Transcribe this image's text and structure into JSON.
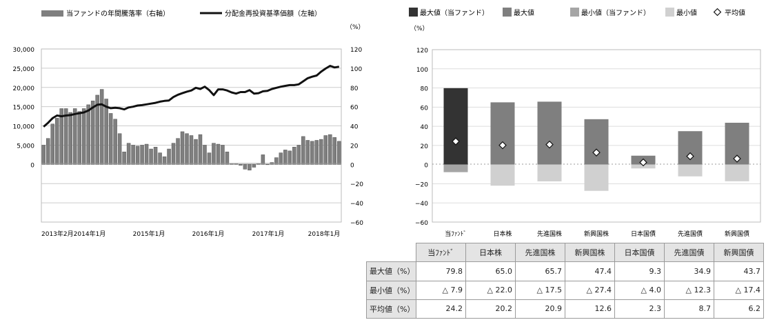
{
  "left_chart": {
    "legend": {
      "bar_label": "当ファンドの年間騰落率（右軸）",
      "line_label": "分配金再投資基準価額（左軸）"
    },
    "right_unit": "（%）",
    "left_ticks": [
      "30,000",
      "25,000",
      "20,000",
      "15,000",
      "10,000",
      "5,000",
      "0"
    ],
    "right_ticks": [
      "120",
      "100",
      "80",
      "60",
      "40",
      "20",
      "0",
      "−20",
      "−40",
      "−60"
    ],
    "x_ticks": [
      "2013年2月",
      "2014年1月",
      "2015年1月",
      "2016年1月",
      "2017年1月",
      "2018年1月"
    ],
    "colors": {
      "bar": "#7f7f7f",
      "line": "#111111",
      "grid": "#cccccc"
    }
  },
  "right_chart": {
    "legend": {
      "max_fund": "最大値（当ファンド）",
      "max": "最大値",
      "min_fund": "最小値（当ファンド）",
      "min": "最小値",
      "avg": "平均値"
    },
    "unit": "（%）",
    "y_ticks": [
      "120",
      "100",
      "80",
      "60",
      "40",
      "20",
      "0",
      "−20",
      "−40",
      "−60"
    ],
    "colors": {
      "max_fund": "#333333",
      "max": "#7f7f7f",
      "min_fund": "#a5a5a5",
      "min": "#d0d0d0"
    }
  },
  "chart_data": [
    {
      "type": "bar",
      "subtype": "bar-line-combo",
      "x_range": [
        "2013年2月",
        "2018年1月"
      ],
      "x_tick_labels": [
        "2013年2月",
        "2014年1月",
        "2015年1月",
        "2016年1月",
        "2017年1月",
        "2018年1月"
      ],
      "ylim_left": [
        0,
        30000
      ],
      "ylim_right": [
        -60,
        120
      ],
      "series": [
        {
          "name": "当ファンドの年間騰落率（右軸）",
          "axis": "right",
          "values": [
            20,
            27,
            42,
            48,
            58,
            58,
            54,
            58,
            55,
            58,
            62,
            66,
            72,
            78,
            68,
            53,
            47,
            32,
            13,
            22,
            20,
            19,
            20,
            21,
            16,
            18,
            12,
            8,
            16,
            22,
            27,
            34,
            32,
            30,
            26,
            31,
            20,
            12,
            22,
            21,
            20,
            13,
            1,
            1,
            -1,
            -5,
            -6,
            -3,
            1,
            10,
            0,
            2,
            7,
            12,
            15,
            14,
            18,
            20,
            29,
            25,
            24,
            25,
            26,
            30,
            31,
            28,
            24
          ]
        },
        {
          "name": "分配金再投資基準価額（左軸）",
          "axis": "left",
          "values": [
            9800,
            10800,
            12000,
            12700,
            12500,
            12700,
            12800,
            13100,
            13300,
            13500,
            14000,
            14800,
            15500,
            15600,
            15000,
            14600,
            14700,
            14600,
            14300,
            14800,
            15000,
            15300,
            15400,
            15600,
            15800,
            16000,
            16300,
            16500,
            16600,
            17500,
            18100,
            18500,
            18900,
            19200,
            19900,
            19600,
            20200,
            19300,
            18000,
            19500,
            19500,
            19200,
            18700,
            18400,
            18800,
            18800,
            19300,
            18400,
            18500,
            19000,
            19100,
            19600,
            19900,
            20200,
            20400,
            20600,
            20600,
            20800,
            21600,
            22400,
            22800,
            23100,
            24100,
            24900,
            25600,
            25200,
            25400
          ]
        }
      ]
    },
    {
      "type": "bar",
      "subtype": "range-bar",
      "categories": [
        "当ﾌｧﾝﾄﾞ",
        "日本株",
        "先進国株",
        "新興国株",
        "日本国債",
        "先進国債",
        "新興国債"
      ],
      "ylim": [
        -60,
        120
      ],
      "series": [
        {
          "name": "最大値",
          "values": [
            79.8,
            65.0,
            65.7,
            47.4,
            9.3,
            34.9,
            43.7
          ]
        },
        {
          "name": "最小値",
          "values": [
            -7.9,
            -22.0,
            -17.5,
            -27.4,
            -4.0,
            -12.3,
            -17.4
          ]
        },
        {
          "name": "平均値",
          "values": [
            24.2,
            20.2,
            20.9,
            12.6,
            2.3,
            8.7,
            6.2
          ]
        }
      ]
    }
  ],
  "table": {
    "headers": [
      "当ﾌｧﾝﾄﾞ",
      "日本株",
      "先進国株",
      "新興国株",
      "日本国債",
      "先進国債",
      "新興国債"
    ],
    "rows": [
      {
        "label": "最大値（%）",
        "cells": [
          "79.8",
          "65.0",
          "65.7",
          "47.4",
          "9.3",
          "34.9",
          "43.7"
        ]
      },
      {
        "label": "最小値（%）",
        "cells": [
          "△ 7.9",
          "△ 22.0",
          "△ 17.5",
          "△ 27.4",
          "△ 4.0",
          "△ 12.3",
          "△ 17.4"
        ]
      },
      {
        "label": "平均値（%）",
        "cells": [
          "24.2",
          "20.2",
          "20.9",
          "12.6",
          "2.3",
          "8.7",
          "6.2"
        ]
      }
    ]
  }
}
